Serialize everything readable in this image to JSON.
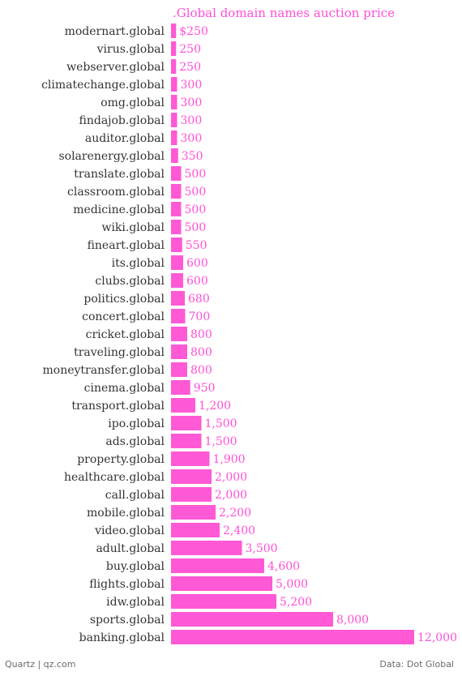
{
  "chart_data": {
    "type": "bar",
    "orientation": "horizontal",
    "title": ".Global domain names auction price",
    "value_prefix": "$",
    "bar_color": "#ff59d6",
    "label_color": "#ff4fd8",
    "categories": [
      "modernart.global",
      "virus.global",
      "webserver.global",
      "climatechange.global",
      "omg.global",
      "findajob.global",
      "auditor.global",
      "solarenergy.global",
      "translate.global",
      "classroom.global",
      "medicine.global",
      "wiki.global",
      "fineart.global",
      "its.global",
      "clubs.global",
      "politics.global",
      "concert.global",
      "cricket.global",
      "traveling.global",
      "moneytransfer.global",
      "cinema.global",
      "transport.global",
      "ipo.global",
      "ads.global",
      "property.global",
      "healthcare.global",
      "call.global",
      "mobile.global",
      "video.global",
      "adult.global",
      "buy.global",
      "flights.global",
      "idw.global",
      "sports.global",
      "banking.global"
    ],
    "values": [
      250,
      250,
      250,
      300,
      300,
      300,
      300,
      350,
      500,
      500,
      500,
      500,
      550,
      600,
      600,
      680,
      700,
      800,
      800,
      800,
      950,
      1200,
      1500,
      1500,
      1900,
      2000,
      2000,
      2200,
      2400,
      3500,
      4600,
      5000,
      5200,
      8000,
      12000
    ],
    "value_labels": [
      "$250",
      "250",
      "250",
      "300",
      "300",
      "300",
      "300",
      "350",
      "500",
      "500",
      "500",
      "500",
      "550",
      "600",
      "600",
      "680",
      "700",
      "800",
      "800",
      "800",
      "950",
      "1,200",
      "1,500",
      "1,500",
      "1,900",
      "2,000",
      "2,000",
      "2,200",
      "2,400",
      "3,500",
      "4,600",
      "5,000",
      "5,200",
      "8,000",
      "12,000"
    ],
    "xlim": [
      0,
      12000
    ]
  },
  "footer": {
    "source_left": "Quartz | qz.com",
    "source_right": "Data: Dot Global"
  }
}
